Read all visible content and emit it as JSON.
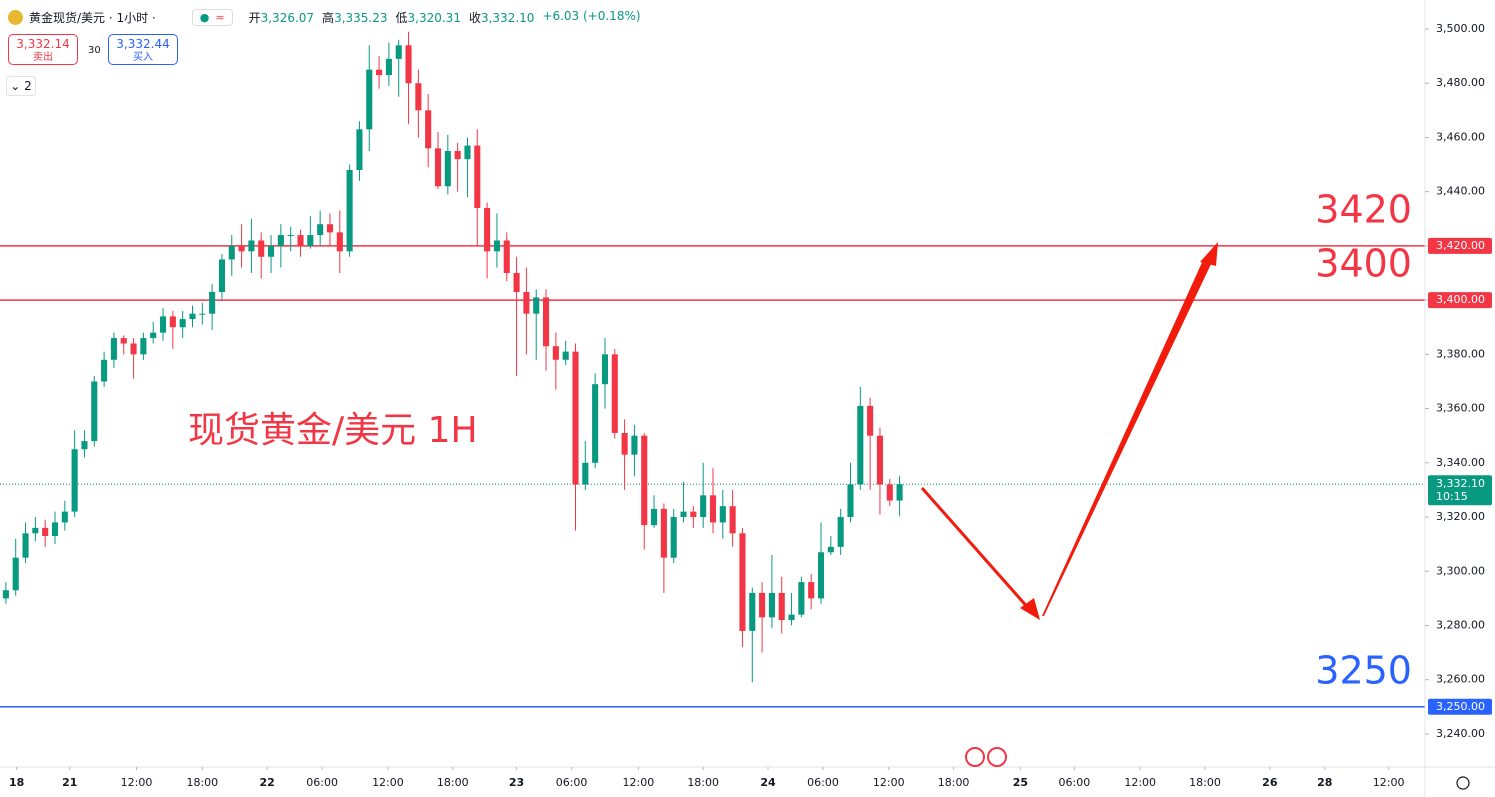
{
  "header": {
    "symbol": "黄金现货/美元 · 1小时 ·",
    "ohlc": [
      {
        "label": "开",
        "value": "3,326.07"
      },
      {
        "label": "高",
        "value": "3,335.23"
      },
      {
        "label": "低",
        "value": "3,320.31"
      },
      {
        "label": "收",
        "value": "3,332.10"
      }
    ],
    "change": "+6.03 (+0.18%)",
    "sell": {
      "price": "3,332.14",
      "label": "卖出"
    },
    "spread": "30",
    "buy": {
      "price": "3,332.44",
      "label": "买入"
    },
    "indicators": "2"
  },
  "chart_data": {
    "type": "candlestick",
    "annotation": "现货黄金/美元 1H",
    "up_color": "#089981",
    "down_color": "#f23645",
    "open": [
      3290,
      3293,
      3305,
      3314,
      3316,
      3313,
      3318,
      3322,
      3345,
      3348,
      3370,
      3378,
      3386,
      3384,
      3380,
      3386,
      3388,
      3394,
      3390,
      3393,
      3395,
      3395,
      3403,
      3415,
      3420,
      3418,
      3422,
      3416,
      3420,
      3424,
      3424,
      3420,
      3424,
      3428,
      3425,
      3418,
      3448,
      3463,
      3485,
      3483,
      3489,
      3494,
      3480,
      3470,
      3456,
      3442,
      3455,
      3452,
      3457,
      3434,
      3418,
      3422,
      3410,
      3403,
      3395,
      3401,
      3383,
      3378,
      3381,
      3332,
      3340,
      3369,
      3380,
      3351,
      3343,
      3350,
      3317,
      3323,
      3305,
      3320,
      3322,
      3320,
      3328,
      3318,
      3324,
      3314,
      3278,
      3292,
      3283,
      3292,
      3282,
      3284,
      3296,
      3290,
      3307,
      3309,
      3320,
      3332,
      3361,
      3350,
      3332,
      3326.07
    ],
    "high": [
      3296,
      3312,
      3318,
      3320,
      3319,
      3322,
      3326,
      3352,
      3352,
      3372,
      3381,
      3388,
      3387,
      3386,
      3388,
      3392,
      3397,
      3396,
      3396,
      3398,
      3399,
      3406,
      3417,
      3424,
      3428,
      3430,
      3425,
      3424,
      3428,
      3427,
      3426,
      3431,
      3433,
      3432,
      3433,
      3450,
      3466,
      3494,
      3490,
      3495,
      3496,
      3499,
      3485,
      3476,
      3462,
      3461,
      3458,
      3460,
      3463,
      3436,
      3432,
      3425,
      3416,
      3412,
      3404,
      3404,
      3388,
      3385,
      3384,
      3348,
      3373,
      3386,
      3382,
      3356,
      3354,
      3351,
      3328,
      3325,
      3323,
      3333,
      3324,
      3340,
      3338,
      3330,
      3330,
      3316,
      3294,
      3296,
      3306,
      3298,
      3292,
      3298,
      3299,
      3318,
      3313,
      3323,
      3340,
      3368,
      3364,
      3353,
      3334,
      3335.23
    ],
    "low": [
      3288,
      3291,
      3303,
      3311,
      3309,
      3310,
      3315,
      3320,
      3342,
      3346,
      3368,
      3375,
      3380,
      3371,
      3378,
      3384,
      3385,
      3382,
      3386,
      3390,
      3391,
      3389,
      3400,
      3409,
      3412,
      3410,
      3408,
      3410,
      3412,
      3418,
      3416,
      3419,
      3420,
      3420,
      3410,
      3416,
      3444,
      3455,
      3478,
      3479,
      3475,
      3465,
      3460,
      3449,
      3441,
      3439,
      3440,
      3438,
      3420,
      3408,
      3412,
      3407,
      3372,
      3380,
      3378,
      3374,
      3367,
      3376,
      3315,
      3330,
      3338,
      3360,
      3349,
      3330,
      3335,
      3308,
      3316,
      3292,
      3303,
      3318,
      3316,
      3316,
      3314,
      3312,
      3309,
      3272,
      3259,
      3270,
      3279,
      3277,
      3280,
      3283,
      3286,
      3288,
      3306,
      3306,
      3318,
      3330,
      3330,
      3321,
      3324,
      3320.31
    ],
    "close": [
      3293,
      3305,
      3314,
      3316,
      3313,
      3318,
      3322,
      3345,
      3348,
      3370,
      3378,
      3386,
      3384,
      3380,
      3386,
      3388,
      3394,
      3390,
      3393,
      3395,
      3395,
      3403,
      3415,
      3420,
      3418,
      3422,
      3416,
      3420,
      3424,
      3424,
      3420,
      3424,
      3428,
      3425,
      3418,
      3448,
      3463,
      3485,
      3483,
      3489,
      3494,
      3480,
      3470,
      3456,
      3442,
      3455,
      3452,
      3457,
      3434,
      3418,
      3422,
      3410,
      3403,
      3395,
      3401,
      3383,
      3378,
      3381,
      3332,
      3340,
      3369,
      3380,
      3351,
      3343,
      3350,
      3317,
      3323,
      3305,
      3320,
      3322,
      3320,
      3328,
      3318,
      3324,
      3314,
      3278,
      3292,
      3283,
      3292,
      3282,
      3284,
      3296,
      3290,
      3307,
      3309,
      3320,
      3332,
      3361,
      3350,
      3332,
      3326.07,
      3332.1
    ],
    "xlim": [
      -0.6,
      144.5
    ],
    "xticks": [
      {
        "value": 1.1,
        "label": "18"
      },
      {
        "value": 6.5,
        "label": "21"
      },
      {
        "value": 13.3,
        "label": "12:00"
      },
      {
        "value": 20,
        "label": "18:00"
      },
      {
        "value": 26.6,
        "label": "22"
      },
      {
        "value": 32.2,
        "label": "06:00"
      },
      {
        "value": 38.9,
        "label": "12:00"
      },
      {
        "value": 45.5,
        "label": "18:00"
      },
      {
        "value": 52,
        "label": "23"
      },
      {
        "value": 57.6,
        "label": "06:00"
      },
      {
        "value": 64.4,
        "label": "12:00"
      },
      {
        "value": 71,
        "label": "18:00"
      },
      {
        "value": 77.6,
        "label": "24"
      },
      {
        "value": 83.2,
        "label": "06:00"
      },
      {
        "value": 89.9,
        "label": "12:00"
      },
      {
        "value": 96.5,
        "label": "18:00"
      },
      {
        "value": 103.3,
        "label": "25"
      },
      {
        "value": 108.8,
        "label": "06:00"
      },
      {
        "value": 115.5,
        "label": "12:00"
      },
      {
        "value": 122.1,
        "label": "18:00"
      },
      {
        "value": 128.7,
        "label": "26"
      },
      {
        "value": 134.3,
        "label": "28"
      },
      {
        "value": 140.8,
        "label": "12:00"
      }
    ],
    "ylim": [
      3227.8,
      3510.7
    ],
    "yticks": [
      {
        "value": 3240,
        "label": "3,240.00"
      },
      {
        "value": 3260,
        "label": "3,260.00"
      },
      {
        "value": 3280,
        "label": "3,280.00"
      },
      {
        "value": 3300,
        "label": "3,300.00"
      },
      {
        "value": 3320,
        "label": "3,320.00"
      },
      {
        "value": 3340,
        "label": "3,340.00"
      },
      {
        "value": 3360,
        "label": "3,360.00"
      },
      {
        "value": 3380,
        "label": "3,380.00"
      },
      {
        "value": 3400,
        "label": "3,400.00"
      },
      {
        "value": 3420,
        "label": "3,420.00"
      },
      {
        "value": 3440,
        "label": "3,440.00"
      },
      {
        "value": 3460,
        "label": "3,460.00"
      },
      {
        "value": 3480,
        "label": "3,480.00"
      },
      {
        "value": 3500,
        "label": "3,500.00"
      }
    ],
    "hlines": [
      {
        "value": 3420,
        "label": "3,420.00",
        "text": "3420",
        "color": "#f23645"
      },
      {
        "value": 3400,
        "label": "3,400.00",
        "text": "3400",
        "color": "#f23645"
      },
      {
        "value": 3250,
        "label": "3,250.00",
        "text": "3250",
        "color": "#2962ff"
      }
    ],
    "last_price": {
      "value": 3332.1,
      "label": "3,332.10",
      "countdown": "10:15",
      "color": "#089981"
    }
  }
}
